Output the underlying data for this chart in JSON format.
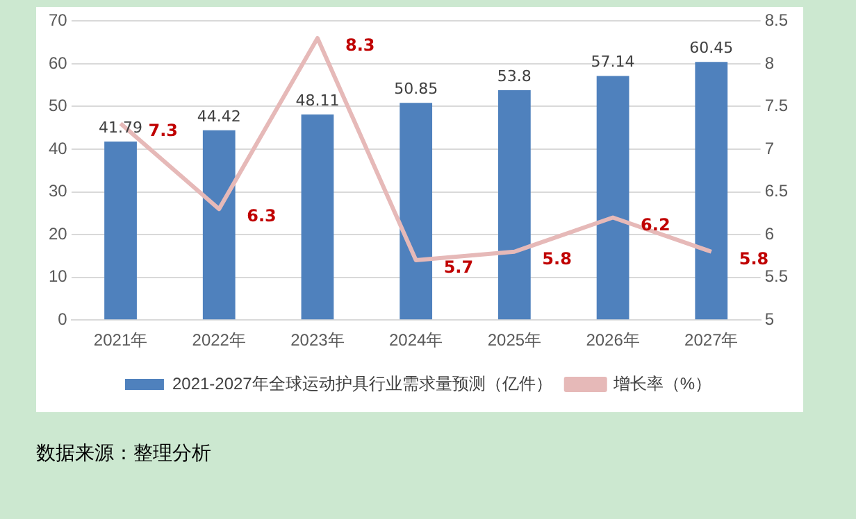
{
  "chart_data": {
    "type": "bar",
    "categories": [
      "2021年",
      "2022年",
      "2023年",
      "2024年",
      "2025年",
      "2026年",
      "2027年"
    ],
    "series": [
      {
        "name": "2021-2027年全球运动护具行业需求量预测（亿件）",
        "color": "#4f81bd",
        "values": [
          41.79,
          44.42,
          48.11,
          50.85,
          53.8,
          57.14,
          60.45
        ]
      },
      {
        "type": "line",
        "name": "增长率（%）",
        "color": "#e6b9b8",
        "axis": "y2",
        "values": [
          7.3,
          6.3,
          8.3,
          5.7,
          5.8,
          6.2,
          5.8
        ]
      }
    ],
    "ylim": [
      0,
      70
    ],
    "yticks": [
      0,
      10,
      20,
      30,
      40,
      50,
      60,
      70
    ],
    "y2lim": [
      5,
      8.5
    ],
    "y2ticks": [
      5,
      {
        "value": 5.5,
        "label": "5.5"
      },
      6,
      {
        "value": 6.5,
        "label": "6.5"
      },
      7,
      {
        "value": 7.5,
        "label": "7.5"
      },
      8,
      {
        "value": 8.5,
        "label": "8.5"
      }
    ],
    "grid": "y",
    "legend": "bottom",
    "marker": "none",
    "data_labels": true,
    "annotations": [
      "数据来源：整理分析"
    ]
  }
}
